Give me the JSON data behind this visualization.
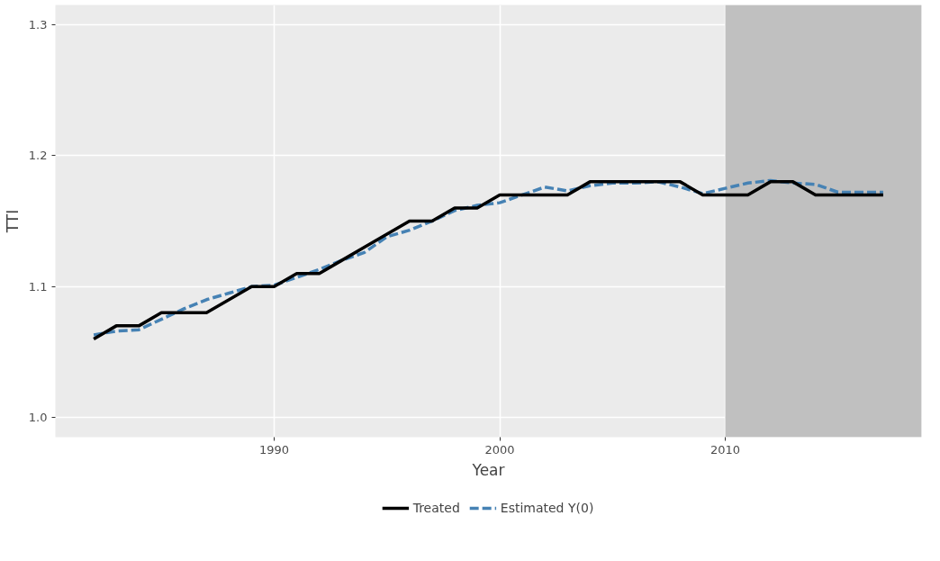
{
  "chart_data": {
    "type": "line",
    "xlabel": "Year",
    "ylabel": "TTI",
    "x": [
      1982,
      1983,
      1984,
      1985,
      1986,
      1987,
      1988,
      1989,
      1990,
      1991,
      1992,
      1993,
      1994,
      1995,
      1996,
      1997,
      1998,
      1999,
      2000,
      2001,
      2002,
      2003,
      2004,
      2005,
      2006,
      2007,
      2008,
      2009,
      2010,
      2011,
      2012,
      2013,
      2014,
      2015,
      2016,
      2017
    ],
    "series": [
      {
        "name": "Treated",
        "color": "#000000",
        "line_style": "solid",
        "values": [
          1.06,
          1.07,
          1.07,
          1.08,
          1.08,
          1.08,
          1.09,
          1.1,
          1.1,
          1.11,
          1.11,
          1.12,
          1.13,
          1.14,
          1.15,
          1.15,
          1.16,
          1.16,
          1.17,
          1.17,
          1.17,
          1.17,
          1.18,
          1.18,
          1.18,
          1.18,
          1.18,
          1.17,
          1.17,
          1.17,
          1.18,
          1.18,
          1.17,
          1.17,
          1.17,
          1.17
        ]
      },
      {
        "name": "Estimated Y(0)",
        "color": "#4682b4",
        "line_style": "dashed",
        "values": [
          1.063,
          1.066,
          1.067,
          1.075,
          1.083,
          1.09,
          1.095,
          1.1,
          1.101,
          1.107,
          1.113,
          1.12,
          1.126,
          1.138,
          1.143,
          1.15,
          1.158,
          1.162,
          1.164,
          1.17,
          1.176,
          1.173,
          1.177,
          1.179,
          1.179,
          1.18,
          1.176,
          1.171,
          1.175,
          1.179,
          1.181,
          1.179,
          1.178,
          1.172,
          1.172,
          1.172
        ]
      }
    ],
    "xlim": [
      1980.3,
      2018.7
    ],
    "ylim": [
      0.985,
      1.315
    ],
    "xticks": [
      1990,
      2000,
      2010
    ],
    "yticks": [
      {
        "value": 1.0,
        "label": "1.0"
      },
      {
        "value": 1.1,
        "label": "1.1"
      },
      {
        "value": 1.2,
        "label": "1.2"
      },
      {
        "value": 1.3,
        "label": "1.3"
      }
    ],
    "bands": [
      {
        "axis": "x",
        "from": 2010,
        "to": 2018.7,
        "color": "#c0c0c0"
      }
    ],
    "grid": true,
    "legend": "bottom"
  }
}
